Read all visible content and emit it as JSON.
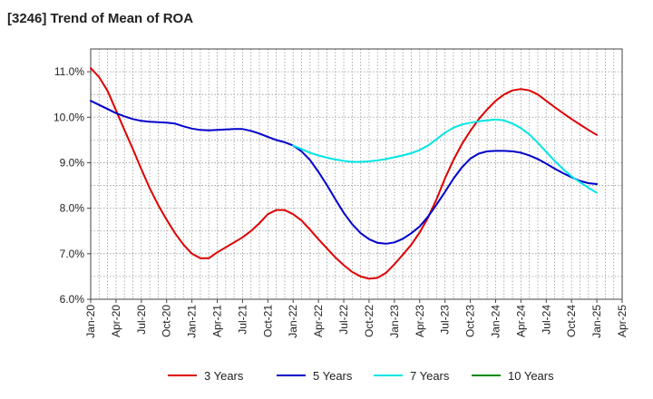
{
  "chart_data": {
    "type": "line",
    "title": "[3246]  Trend of Mean of ROA",
    "xlabel": "",
    "ylabel": "",
    "x_ticks": [
      "Jan-20",
      "Apr-20",
      "Jul-20",
      "Oct-20",
      "Jan-21",
      "Apr-21",
      "Jul-21",
      "Oct-21",
      "Jan-22",
      "Apr-22",
      "Jul-22",
      "Oct-22",
      "Jan-23",
      "Apr-23",
      "Jul-23",
      "Oct-23",
      "Jan-24",
      "Apr-24",
      "Jul-24",
      "Oct-24",
      "Jan-25",
      "Apr-25"
    ],
    "y_ticks": [
      "6.0%",
      "7.0%",
      "8.0%",
      "9.0%",
      "10.0%",
      "11.0%"
    ],
    "ylim": [
      6.0,
      11.5
    ],
    "y_unit": "%",
    "grid": true,
    "legend_position": "bottom",
    "series": [
      {
        "name": "3 Years",
        "color": "#dd0000",
        "points": [
          [
            "Jan-20",
            11.08
          ],
          [
            "Feb-20",
            10.88
          ],
          [
            "Mar-20",
            10.58
          ],
          [
            "Apr-20",
            10.15
          ],
          [
            "May-20",
            9.72
          ],
          [
            "Jun-20",
            9.3
          ],
          [
            "Jul-20",
            8.86
          ],
          [
            "Aug-20",
            8.44
          ],
          [
            "Sep-20",
            8.07
          ],
          [
            "Oct-20",
            7.75
          ],
          [
            "Nov-20",
            7.45
          ],
          [
            "Dec-20",
            7.2
          ],
          [
            "Jan-21",
            7.0
          ],
          [
            "Feb-21",
            6.9
          ],
          [
            "Mar-21",
            6.9
          ],
          [
            "Apr-21",
            7.03
          ],
          [
            "May-21",
            7.14
          ],
          [
            "Jun-21",
            7.25
          ],
          [
            "Jul-21",
            7.36
          ],
          [
            "Aug-21",
            7.5
          ],
          [
            "Sep-21",
            7.67
          ],
          [
            "Oct-21",
            7.87
          ],
          [
            "Nov-21",
            7.96
          ],
          [
            "Dec-21",
            7.96
          ],
          [
            "Jan-22",
            7.87
          ],
          [
            "Feb-22",
            7.73
          ],
          [
            "Mar-22",
            7.53
          ],
          [
            "Apr-22",
            7.32
          ],
          [
            "May-22",
            7.12
          ],
          [
            "Jun-22",
            6.92
          ],
          [
            "Jul-22",
            6.75
          ],
          [
            "Aug-22",
            6.6
          ],
          [
            "Sep-22",
            6.5
          ],
          [
            "Oct-22",
            6.45
          ],
          [
            "Nov-22",
            6.47
          ],
          [
            "Dec-22",
            6.58
          ],
          [
            "Jan-23",
            6.77
          ],
          [
            "Feb-23",
            6.98
          ],
          [
            "Mar-23",
            7.2
          ],
          [
            "Apr-23",
            7.47
          ],
          [
            "May-23",
            7.8
          ],
          [
            "Jun-23",
            8.2
          ],
          [
            "Jul-23",
            8.66
          ],
          [
            "Aug-23",
            9.06
          ],
          [
            "Sep-23",
            9.41
          ],
          [
            "Oct-23",
            9.7
          ],
          [
            "Nov-23",
            9.96
          ],
          [
            "Dec-23",
            10.17
          ],
          [
            "Jan-24",
            10.36
          ],
          [
            "Feb-24",
            10.5
          ],
          [
            "Mar-24",
            10.59
          ],
          [
            "Apr-24",
            10.62
          ],
          [
            "May-24",
            10.59
          ],
          [
            "Jun-24",
            10.5
          ],
          [
            "Jul-24",
            10.36
          ],
          [
            "Aug-24",
            10.22
          ],
          [
            "Sep-24",
            10.09
          ],
          [
            "Oct-24",
            9.96
          ],
          [
            "Nov-24",
            9.84
          ],
          [
            "Dec-24",
            9.72
          ],
          [
            "Jan-25",
            9.61
          ]
        ]
      },
      {
        "name": "5 Years",
        "color": "#0000cc",
        "points": [
          [
            "Jan-20",
            10.36
          ],
          [
            "Feb-20",
            10.27
          ],
          [
            "Mar-20",
            10.18
          ],
          [
            "Apr-20",
            10.09
          ],
          [
            "May-20",
            10.02
          ],
          [
            "Jun-20",
            9.96
          ],
          [
            "Jul-20",
            9.92
          ],
          [
            "Aug-20",
            9.9
          ],
          [
            "Sep-20",
            9.89
          ],
          [
            "Oct-20",
            9.88
          ],
          [
            "Nov-20",
            9.86
          ],
          [
            "Dec-20",
            9.8
          ],
          [
            "Jan-21",
            9.75
          ],
          [
            "Feb-21",
            9.72
          ],
          [
            "Mar-21",
            9.71
          ],
          [
            "Apr-21",
            9.72
          ],
          [
            "May-21",
            9.73
          ],
          [
            "Jun-21",
            9.74
          ],
          [
            "Jul-21",
            9.74
          ],
          [
            "Aug-21",
            9.7
          ],
          [
            "Sep-21",
            9.64
          ],
          [
            "Oct-21",
            9.57
          ],
          [
            "Nov-21",
            9.5
          ],
          [
            "Dec-21",
            9.45
          ],
          [
            "Jan-22",
            9.38
          ],
          [
            "Feb-22",
            9.25
          ],
          [
            "Mar-22",
            9.06
          ],
          [
            "Apr-22",
            8.8
          ],
          [
            "May-22",
            8.51
          ],
          [
            "Jun-22",
            8.2
          ],
          [
            "Jul-22",
            7.9
          ],
          [
            "Aug-22",
            7.65
          ],
          [
            "Sep-22",
            7.45
          ],
          [
            "Oct-22",
            7.32
          ],
          [
            "Nov-22",
            7.24
          ],
          [
            "Dec-22",
            7.22
          ],
          [
            "Jan-23",
            7.25
          ],
          [
            "Feb-23",
            7.33
          ],
          [
            "Mar-23",
            7.45
          ],
          [
            "Apr-23",
            7.6
          ],
          [
            "May-23",
            7.82
          ],
          [
            "Jun-23",
            8.08
          ],
          [
            "Jul-23",
            8.36
          ],
          [
            "Aug-23",
            8.65
          ],
          [
            "Sep-23",
            8.9
          ],
          [
            "Oct-23",
            9.09
          ],
          [
            "Nov-23",
            9.2
          ],
          [
            "Dec-23",
            9.25
          ],
          [
            "Jan-24",
            9.26
          ],
          [
            "Feb-24",
            9.26
          ],
          [
            "Mar-24",
            9.25
          ],
          [
            "Apr-24",
            9.22
          ],
          [
            "May-24",
            9.16
          ],
          [
            "Jun-24",
            9.08
          ],
          [
            "Jul-24",
            8.98
          ],
          [
            "Aug-24",
            8.87
          ],
          [
            "Sep-24",
            8.77
          ],
          [
            "Oct-24",
            8.68
          ],
          [
            "Nov-24",
            8.6
          ],
          [
            "Dec-24",
            8.55
          ],
          [
            "Jan-25",
            8.53
          ]
        ]
      },
      {
        "name": "7 Years",
        "color": "#00e5e5",
        "points": [
          [
            "Jan-22",
            9.38
          ],
          [
            "Feb-22",
            9.3
          ],
          [
            "Mar-22",
            9.22
          ],
          [
            "Apr-22",
            9.16
          ],
          [
            "May-22",
            9.11
          ],
          [
            "Jun-22",
            9.07
          ],
          [
            "Jul-22",
            9.04
          ],
          [
            "Aug-22",
            9.02
          ],
          [
            "Sep-22",
            9.02
          ],
          [
            "Oct-22",
            9.03
          ],
          [
            "Nov-22",
            9.05
          ],
          [
            "Dec-22",
            9.08
          ],
          [
            "Jan-23",
            9.12
          ],
          [
            "Feb-23",
            9.16
          ],
          [
            "Mar-23",
            9.21
          ],
          [
            "Apr-23",
            9.28
          ],
          [
            "May-23",
            9.38
          ],
          [
            "Jun-23",
            9.52
          ],
          [
            "Jul-23",
            9.66
          ],
          [
            "Aug-23",
            9.77
          ],
          [
            "Sep-23",
            9.84
          ],
          [
            "Oct-23",
            9.88
          ],
          [
            "Nov-23",
            9.91
          ],
          [
            "Dec-23",
            9.93
          ],
          [
            "Jan-24",
            9.95
          ],
          [
            "Feb-24",
            9.93
          ],
          [
            "Mar-24",
            9.86
          ],
          [
            "Apr-24",
            9.76
          ],
          [
            "May-24",
            9.62
          ],
          [
            "Jun-24",
            9.44
          ],
          [
            "Jul-24",
            9.24
          ],
          [
            "Aug-24",
            9.04
          ],
          [
            "Sep-24",
            8.86
          ],
          [
            "Oct-24",
            8.7
          ],
          [
            "Nov-24",
            8.57
          ],
          [
            "Dec-24",
            8.45
          ],
          [
            "Jan-25",
            8.34
          ]
        ]
      },
      {
        "name": "10 Years",
        "color": "#008800",
        "points": []
      }
    ]
  }
}
